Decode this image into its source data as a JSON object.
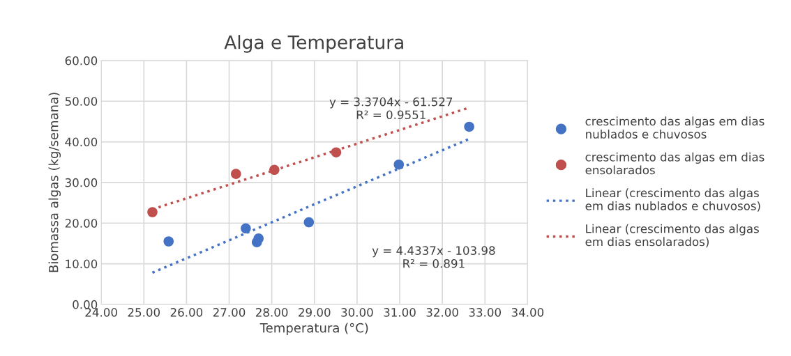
{
  "chart_data": {
    "type": "scatter",
    "title": "Alga e Temperatura",
    "xlabel": "Temperatura (°C)",
    "ylabel": "Biomassa algas (kg/semana)",
    "series": [
      {
        "name": "crescimento das algas em dias nublados e chuvosos",
        "color": "#4472c4",
        "marker": "circle",
        "x": [
          25.58,
          27.39,
          27.69,
          27.65,
          28.87,
          30.98,
          32.63
        ],
        "values": [
          15.5,
          18.7,
          16.2,
          15.3,
          20.2,
          34.4,
          43.7
        ]
      },
      {
        "name": "crescimento das algas em dias ensolarados",
        "color": "#c0504d",
        "marker": "circle",
        "x": [
          25.2,
          27.16,
          28.06,
          29.51
        ],
        "values": [
          22.7,
          32.1,
          33.1,
          37.4
        ]
      },
      {
        "name": "Linear (crescimento das algas em dias nublados e chuvosos)",
        "type": "line",
        "color": "#4472c4",
        "line_style": "dotted",
        "marker": "none",
        "x": [
          25.2,
          32.63
        ],
        "values": [
          7.8,
          40.7
        ]
      },
      {
        "name": "Linear (crescimento das algas em dias ensolarados)",
        "type": "line",
        "color": "#c0504d",
        "line_style": "dotted",
        "marker": "none",
        "x": [
          25.2,
          32.63
        ],
        "values": [
          23.4,
          48.4
        ]
      }
    ],
    "annotations": [
      "y = 3.3704x - 61.527\nR² = 0.9551",
      "y = 4.4337x - 103.98\nR² = 0.891"
    ],
    "xlim": [
      24,
      34
    ],
    "ylim": [
      0,
      60
    ],
    "xticks": [
      {
        "value": 24,
        "label": "24.00"
      },
      {
        "value": 25,
        "label": "25.00"
      },
      {
        "value": 26,
        "label": "26.00"
      },
      {
        "value": 27,
        "label": "27.00"
      },
      {
        "value": 28,
        "label": "28.00"
      },
      {
        "value": 29,
        "label": "29.00"
      },
      {
        "value": 30,
        "label": "30.00"
      },
      {
        "value": 31,
        "label": "31.00"
      },
      {
        "value": 32,
        "label": "32.00"
      },
      {
        "value": 33,
        "label": "33.00"
      },
      {
        "value": 34,
        "label": "34.00"
      }
    ],
    "yticks": [
      {
        "value": 0,
        "label": "0.00"
      },
      {
        "value": 10,
        "label": "10.00"
      },
      {
        "value": 20,
        "label": "20.00"
      },
      {
        "value": 30,
        "label": "30.00"
      },
      {
        "value": 40,
        "label": "40.00"
      },
      {
        "value": 50,
        "label": "50.00"
      },
      {
        "value": 60,
        "label": "60.00"
      }
    ],
    "grid": true,
    "legend": "right"
  }
}
